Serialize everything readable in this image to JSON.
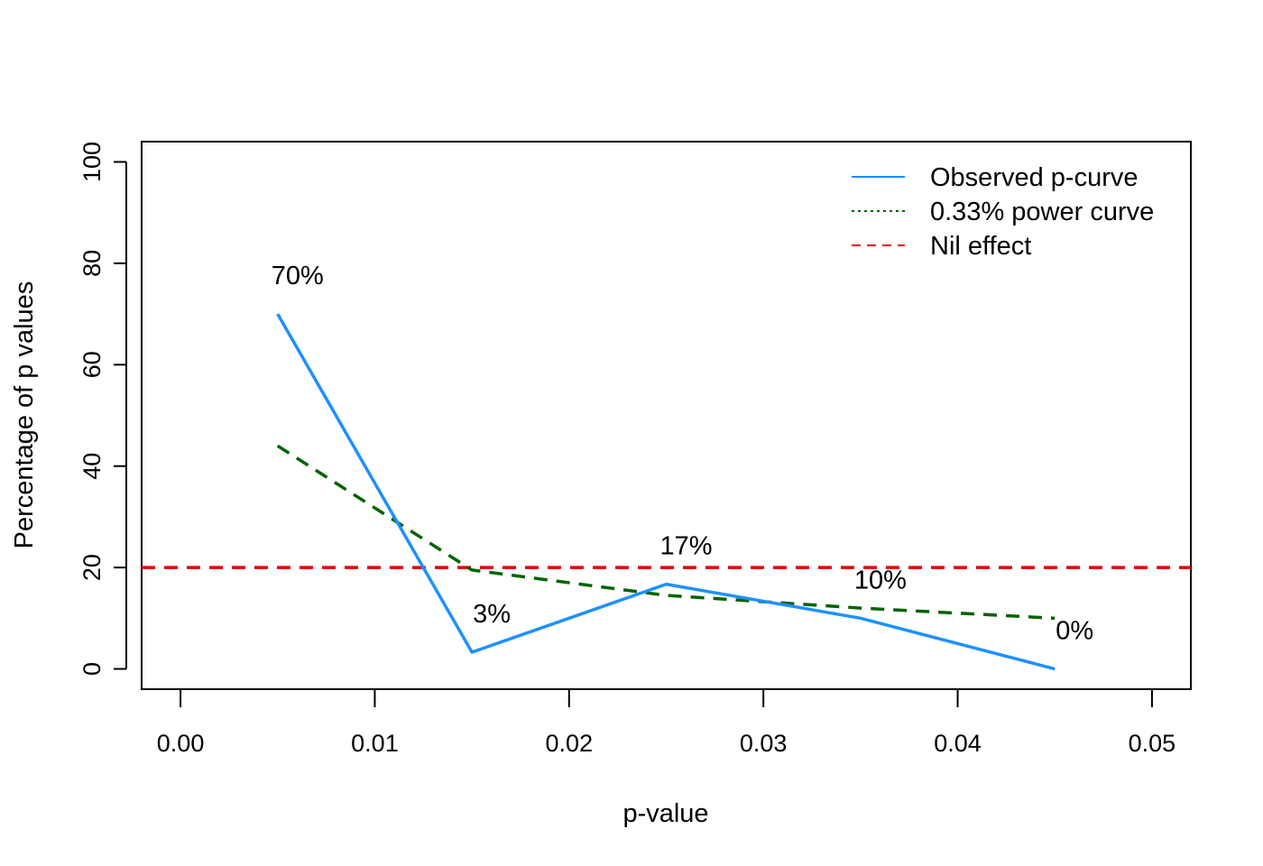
{
  "chart_data": {
    "type": "line",
    "xlabel": "p-value",
    "ylabel": "Percentage of p values",
    "xlim": [
      -0.002,
      0.052
    ],
    "ylim": [
      -4,
      104
    ],
    "x_ticks": [
      0.0,
      0.01,
      0.02,
      0.03,
      0.04,
      0.05
    ],
    "x_tick_labels": [
      "0.00",
      "0.01",
      "0.02",
      "0.03",
      "0.04",
      "0.05"
    ],
    "y_ticks": [
      0,
      20,
      40,
      60,
      80,
      100
    ],
    "y_tick_labels": [
      "0",
      "20",
      "40",
      "60",
      "80",
      "100"
    ],
    "grid": false,
    "legend_position": "top-right",
    "x": [
      0.005,
      0.015,
      0.025,
      0.035,
      0.045
    ],
    "series": [
      {
        "name": "Observed p-curve",
        "values": [
          70,
          3.3,
          16.7,
          10,
          0
        ],
        "color": "#1E90FF",
        "style": "solid"
      },
      {
        "name": "0.33% power curve",
        "values": [
          44,
          19.5,
          14.5,
          12,
          10
        ],
        "color": "#006400",
        "style": "dashed"
      },
      {
        "name": "Nil effect",
        "values": [
          20,
          20,
          20,
          20,
          20
        ],
        "color": "#E8000B",
        "style": "dashed",
        "span": "full"
      }
    ],
    "point_labels": [
      {
        "x": 0.005,
        "y": 70,
        "text": "70%"
      },
      {
        "x": 0.015,
        "y": 3.3,
        "text": "3%"
      },
      {
        "x": 0.025,
        "y": 16.7,
        "text": "17%"
      },
      {
        "x": 0.035,
        "y": 10,
        "text": "10%"
      },
      {
        "x": 0.045,
        "y": 0,
        "text": "0%"
      }
    ],
    "legend": [
      {
        "label": "Observed p-curve",
        "color": "#1E90FF",
        "style": "solid"
      },
      {
        "label": "0.33% power curve",
        "color": "#006400",
        "style": "dotted"
      },
      {
        "label": "Nil effect",
        "color": "#E8000B",
        "style": "dashed"
      }
    ]
  }
}
